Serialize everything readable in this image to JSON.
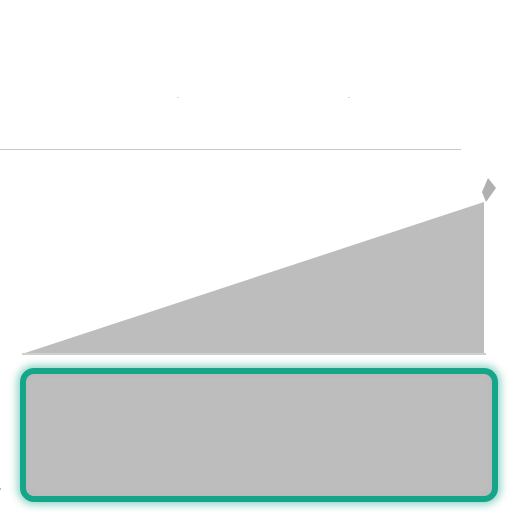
{
  "colors": {
    "background": "#ffffff",
    "divider": "#c8c8c8",
    "ramp_fill": "#bdbdbd",
    "ramp_base": "#cfcfcf",
    "panel_fill": "#bbbbbb",
    "panel_border": "#15a589"
  },
  "icons": {
    "ramp_corner": "pencil-tip-icon"
  }
}
